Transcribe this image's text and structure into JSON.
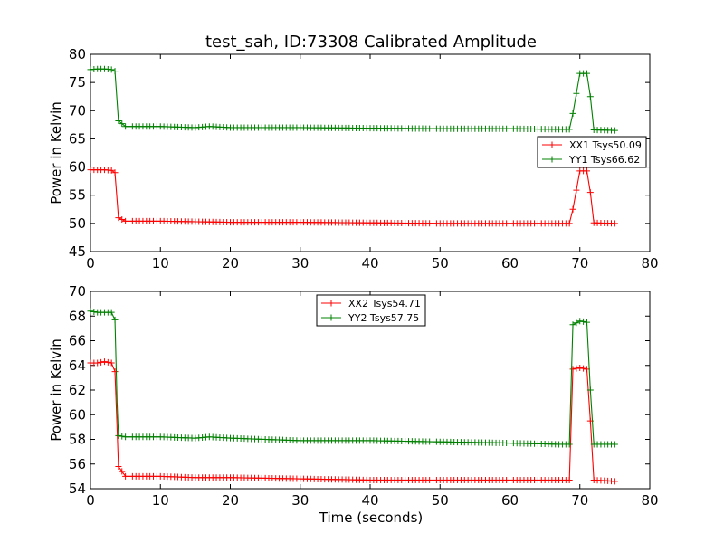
{
  "chart_data": [
    {
      "type": "line",
      "title": "test_sah, ID:73308 Calibrated Amplitude",
      "xlabel": "",
      "ylabel": "Power in Kelvin",
      "xlim": [
        0,
        80
      ],
      "ylim": [
        45,
        80
      ],
      "xticks": [
        0,
        10,
        20,
        30,
        40,
        50,
        60,
        70,
        80
      ],
      "yticks": [
        45,
        50,
        55,
        60,
        65,
        70,
        75,
        80
      ],
      "grid": false,
      "legend_position": "right",
      "marker": "+",
      "series": [
        {
          "name": "XX1 Tsys50.09",
          "color": "#ff0000",
          "x": [
            0,
            1,
            2,
            3,
            3.5,
            4,
            5,
            10,
            15,
            20,
            30,
            40,
            50,
            60,
            67,
            68.5,
            69,
            70,
            71,
            71.5,
            72,
            75
          ],
          "y": [
            59.5,
            59.5,
            59.5,
            59.4,
            59,
            51,
            50.4,
            50.4,
            50.3,
            50.2,
            50.2,
            50.1,
            50,
            50,
            50,
            50,
            52.5,
            59.3,
            59.3,
            55.5,
            50.1,
            50
          ]
        },
        {
          "name": "YY1 Tsys66.62",
          "color": "#008000",
          "x": [
            0,
            1,
            2,
            3,
            3.5,
            4,
            5,
            10,
            15,
            17,
            20,
            30,
            40,
            50,
            60,
            67,
            68.5,
            69,
            70,
            71,
            71.5,
            72,
            75
          ],
          "y": [
            77.3,
            77.4,
            77.4,
            77.3,
            77,
            68.2,
            67.2,
            67.2,
            67,
            67.2,
            67,
            67,
            66.9,
            66.8,
            66.8,
            66.7,
            66.7,
            69.5,
            76.6,
            76.6,
            72.5,
            66.6,
            66.5
          ]
        }
      ]
    },
    {
      "type": "line",
      "title": "",
      "xlabel": "Time (seconds)",
      "ylabel": "Power in Kelvin",
      "xlim": [
        0,
        80
      ],
      "ylim": [
        54,
        70
      ],
      "xticks": [
        0,
        10,
        20,
        30,
        40,
        50,
        60,
        70,
        80
      ],
      "yticks": [
        54,
        56,
        58,
        60,
        62,
        64,
        66,
        68,
        70
      ],
      "grid": false,
      "legend_position": "top-center",
      "marker": "+",
      "series": [
        {
          "name": "XX2 Tsys54.71",
          "color": "#ff0000",
          "x": [
            0,
            1,
            2,
            3,
            3.5,
            3.8,
            4,
            5,
            10,
            15,
            20,
            30,
            40,
            50,
            60,
            67,
            68.5,
            69,
            70,
            71,
            71.5,
            72,
            75
          ],
          "y": [
            64.2,
            64.2,
            64.3,
            64.2,
            63.5,
            59,
            55.8,
            55,
            55,
            54.9,
            54.9,
            54.8,
            54.7,
            54.7,
            54.7,
            54.7,
            54.7,
            63.7,
            63.8,
            63.7,
            59.5,
            54.7,
            54.6
          ]
        },
        {
          "name": "YY2 Tsys57.75",
          "color": "#008000",
          "x": [
            0,
            1,
            2,
            3,
            3.5,
            3.8,
            4,
            5,
            10,
            15,
            17,
            20,
            30,
            40,
            50,
            60,
            67,
            68.5,
            69,
            70,
            71,
            71.5,
            72,
            75
          ],
          "y": [
            68.4,
            68.3,
            68.3,
            68.3,
            67.7,
            61,
            58.3,
            58.2,
            58.2,
            58.1,
            58.2,
            58.1,
            57.9,
            57.9,
            57.8,
            57.7,
            57.6,
            57.6,
            67.3,
            67.6,
            67.5,
            62,
            57.6,
            57.6
          ]
        }
      ]
    }
  ]
}
